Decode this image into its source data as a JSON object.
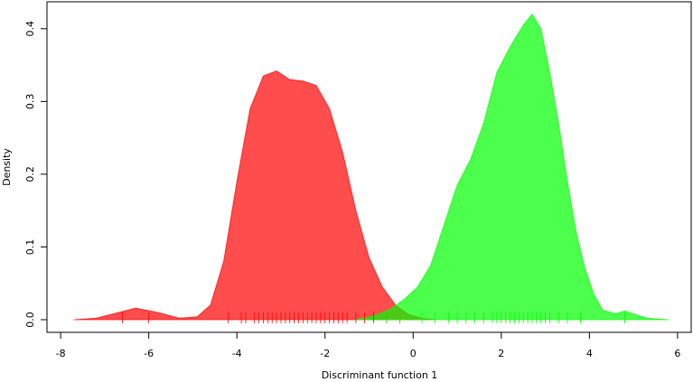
{
  "chart_data": {
    "type": "density",
    "xlabel": "Discriminant function 1",
    "ylabel": "Density",
    "xlim": [
      -8.31,
      6.31
    ],
    "ylim": [
      -0.0174,
      0.437
    ],
    "xticks": [
      -8,
      -6,
      -4,
      -2,
      0,
      2,
      4,
      6
    ],
    "yticks": [
      {
        "value": 0,
        "label": "0.0"
      },
      0.1,
      0.2,
      0.3,
      0.4
    ],
    "alpha": 0.7,
    "series": [
      {
        "color": "#ff0000",
        "x": [
          -7.7,
          -7.2,
          -6.8,
          -6.3,
          -5.8,
          -5.3,
          -4.9,
          -4.6,
          -4.3,
          -4.0,
          -3.7,
          -3.4,
          -3.1,
          -2.8,
          -2.5,
          -2.2,
          -1.9,
          -1.6,
          -1.3,
          -1.0,
          -0.7,
          -0.4,
          -0.1,
          0.2,
          0.5
        ],
        "values": [
          0,
          0.002,
          0.008,
          0.016,
          0.01,
          0.002,
          0.004,
          0.02,
          0.08,
          0.19,
          0.29,
          0.335,
          0.342,
          0.33,
          0.328,
          0.322,
          0.29,
          0.23,
          0.15,
          0.085,
          0.045,
          0.02,
          0.007,
          0.002,
          0
        ],
        "rug": [
          -6.6,
          -6.0,
          -4.2,
          -3.9,
          -3.8,
          -3.6,
          -3.5,
          -3.4,
          -3.3,
          -3.2,
          -3.1,
          -3.0,
          -2.9,
          -2.8,
          -2.7,
          -2.6,
          -2.5,
          -2.4,
          -2.3,
          -2.2,
          -2.1,
          -2.0,
          -1.9,
          -1.8,
          -1.7,
          -1.6,
          -1.5,
          -1.3,
          -1.1,
          -0.9,
          -0.6,
          -0.3
        ]
      },
      {
        "color": "#00ff00",
        "x": [
          -1.3,
          -0.9,
          -0.5,
          -0.2,
          0.1,
          0.4,
          0.7,
          1.0,
          1.3,
          1.6,
          1.9,
          2.2,
          2.5,
          2.7,
          2.9,
          3.1,
          3.3,
          3.5,
          3.7,
          3.9,
          4.1,
          4.3,
          4.6,
          4.8,
          5.0,
          5.3,
          5.8
        ],
        "values": [
          0,
          0.005,
          0.015,
          0.028,
          0.045,
          0.075,
          0.13,
          0.185,
          0.22,
          0.27,
          0.34,
          0.375,
          0.405,
          0.42,
          0.4,
          0.34,
          0.27,
          0.19,
          0.12,
          0.07,
          0.035,
          0.013,
          0.008,
          0.012,
          0.008,
          0.002,
          0
        ],
        "rug": [
          -0.6,
          -0.3,
          0.2,
          0.5,
          0.8,
          1.0,
          1.2,
          1.4,
          1.6,
          1.8,
          1.9,
          2.0,
          2.1,
          2.2,
          2.3,
          2.4,
          2.5,
          2.6,
          2.7,
          2.8,
          2.9,
          3.0,
          3.1,
          3.3,
          3.5,
          3.8,
          4.8
        ]
      }
    ]
  }
}
